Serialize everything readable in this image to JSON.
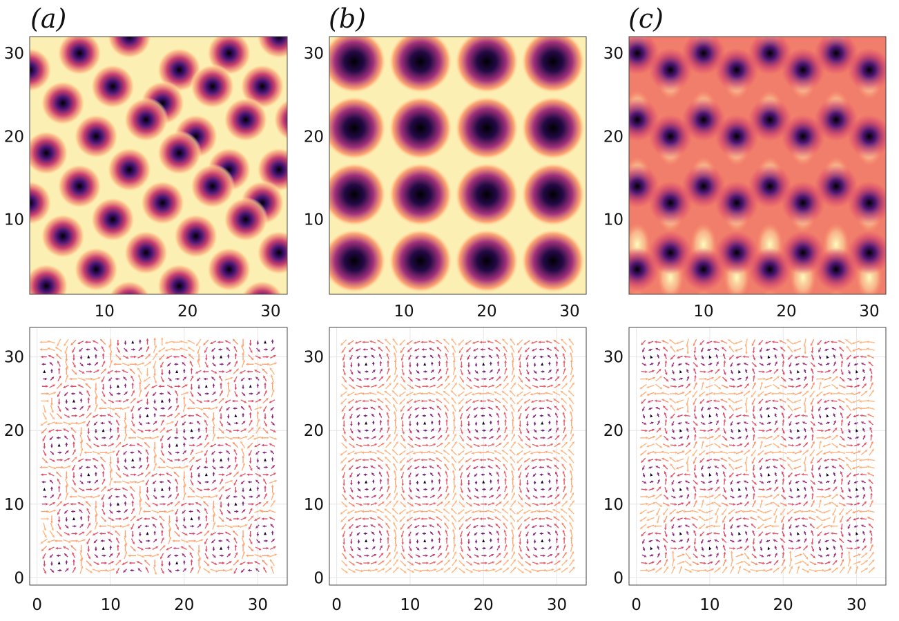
{
  "figure": {
    "panels": [
      "(a)",
      "(b)",
      "(c)"
    ],
    "colormap": [
      "#000004",
      "#3b0f70",
      "#8c2981",
      "#de4968",
      "#fe9f6d",
      "#fcfdbf"
    ]
  },
  "chart_data": [
    {
      "panel": "(a)",
      "row": "top",
      "type": "heatmap",
      "pattern": "hexagonal lattice of dark spots (skyrmion-like)",
      "xlim": [
        1,
        32
      ],
      "ylim": [
        1,
        32
      ],
      "xticks": [
        "10",
        "20",
        "30"
      ],
      "yticks": [
        "10",
        "20",
        "30"
      ],
      "xlabel": "",
      "ylabel": "",
      "spot_centers": [
        [
          7,
          30
        ],
        [
          13,
          32
        ],
        [
          19,
          28
        ],
        [
          25,
          30
        ],
        [
          31,
          32
        ],
        [
          1,
          28
        ],
        [
          11,
          26
        ],
        [
          17,
          24
        ],
        [
          23,
          26
        ],
        [
          29,
          26
        ],
        [
          5,
          24
        ],
        [
          15,
          22
        ],
        [
          21,
          20
        ],
        [
          27,
          22
        ],
        [
          33,
          22
        ],
        [
          9,
          20
        ],
        [
          19,
          18
        ],
        [
          25,
          16
        ],
        [
          31,
          16
        ],
        [
          3,
          18
        ],
        [
          13,
          16
        ],
        [
          23,
          14
        ],
        [
          29,
          12
        ],
        [
          7,
          14
        ],
        [
          1,
          12
        ],
        [
          17,
          12
        ],
        [
          27,
          10
        ],
        [
          11,
          10
        ],
        [
          5,
          8
        ],
        [
          21,
          8
        ],
        [
          31,
          6
        ],
        [
          15,
          6
        ],
        [
          9,
          4
        ],
        [
          25,
          4
        ],
        [
          3,
          2
        ],
        [
          19,
          2
        ],
        [
          13,
          0
        ],
        [
          29,
          0
        ]
      ]
    },
    {
      "panel": "(b)",
      "row": "top",
      "type": "heatmap",
      "pattern": "square lattice of dark spots",
      "xlim": [
        1,
        32
      ],
      "ylim": [
        1,
        32
      ],
      "xticks": [
        "10",
        "20",
        "30"
      ],
      "yticks": [
        "10",
        "20",
        "30"
      ],
      "xlabel": "",
      "ylabel": "",
      "spot_x": [
        4,
        12,
        20,
        28
      ],
      "spot_y": [
        5,
        13,
        21,
        29
      ]
    },
    {
      "panel": "(c)",
      "row": "top",
      "type": "heatmap",
      "pattern": "triangular lattice of dark spots on orange background",
      "xlim": [
        1,
        32
      ],
      "ylim": [
        1,
        32
      ],
      "xticks": [
        "10",
        "20",
        "30"
      ],
      "yticks": [
        "10",
        "20",
        "30"
      ],
      "xlabel": "",
      "ylabel": "",
      "spot_rows_a": {
        "x": [
          2,
          10,
          18,
          26
        ],
        "y": [
          4,
          14,
          22,
          30
        ]
      },
      "spot_rows_b": {
        "x": [
          6,
          14,
          22,
          30
        ],
        "y": [
          6,
          12,
          20,
          28
        ]
      }
    },
    {
      "panel": "(a)",
      "row": "bottom",
      "type": "quiver",
      "xlim": [
        -1,
        34
      ],
      "ylim": [
        -1,
        34
      ],
      "xticks": [
        "0",
        "10",
        "20",
        "30"
      ],
      "yticks": [
        "0",
        "10",
        "20",
        "30"
      ],
      "xlabel": "",
      "ylabel": ""
    },
    {
      "panel": "(b)",
      "row": "bottom",
      "type": "quiver",
      "xlim": [
        -1,
        34
      ],
      "ylim": [
        -1,
        34
      ],
      "xticks": [
        "0",
        "10",
        "20",
        "30"
      ],
      "yticks": [
        "0",
        "10",
        "20",
        "30"
      ],
      "xlabel": "",
      "ylabel": ""
    },
    {
      "panel": "(c)",
      "row": "bottom",
      "type": "quiver",
      "xlim": [
        -1,
        34
      ],
      "ylim": [
        -1,
        34
      ],
      "xticks": [
        "0",
        "10",
        "20",
        "30"
      ],
      "yticks": [
        "0",
        "10",
        "20",
        "30"
      ],
      "xlabel": "",
      "ylabel": ""
    }
  ]
}
